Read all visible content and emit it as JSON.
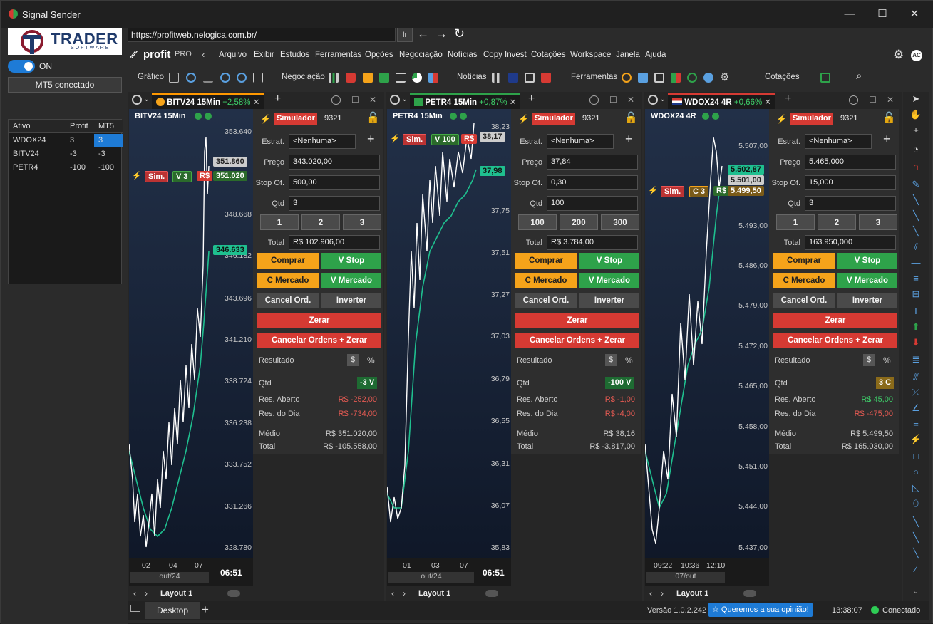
{
  "window": {
    "title": "Signal Sender",
    "min": "—",
    "max": "☐",
    "close": "✕"
  },
  "left": {
    "logo_main": "TRADER",
    "logo_sub": "SOFTWARE",
    "toggle_label": "ON",
    "mt5_status": "MT5 conectado",
    "table": {
      "headers": [
        "Ativo",
        "Profit",
        "MT5"
      ],
      "rows": [
        [
          "WDOX24",
          "3",
          "3"
        ],
        [
          "BITV24",
          "-3",
          "-3"
        ],
        [
          "PETR4",
          "-100",
          "-100"
        ]
      ]
    }
  },
  "browser": {
    "url": "https://profitweb.nelogica.com.br/",
    "go": "Ir",
    "back": "←",
    "forward": "→",
    "reload": "↻"
  },
  "app": {
    "brand": "profit",
    "brand_suffix": "PRO",
    "menu": [
      "Arquivo",
      "Exibir",
      "Estudos",
      "Ferramentas",
      "Opções",
      "Negociação",
      "Notícias",
      "Copy Invest",
      "Cotações",
      "Workspace",
      "Janela",
      "Ajuda"
    ],
    "user_badge": "AC",
    "toolbar_labels": {
      "grafico": "Gráfico",
      "negociacao": "Negociação",
      "noticias": "Notícias",
      "ferramentas": "Ferramentas",
      "cotacoes": "Cotações"
    }
  },
  "colors": {
    "accent": "#1e7bd6",
    "buy": "#f5a31a",
    "sell": "#2ea24a",
    "danger": "#d63a33",
    "ma": "#1fbf8f"
  },
  "panels": [
    {
      "tab": "BITV24 15Min",
      "tab_change": "+2,58%",
      "chart_title": "BITV24 15Min",
      "y_labels": [
        "353.640",
        "351.860",
        "351.020",
        "348.668",
        "346.633",
        "346.182",
        "343.696",
        "341.210",
        "338.724",
        "336.238",
        "333.752",
        "331.266",
        "328.780"
      ],
      "x_labels": [
        "02",
        "04",
        "07"
      ],
      "x_month": "out/24",
      "time": "06:51",
      "markers": {
        "sim": "Sim.",
        "pos": "V 3",
        "cur": "R$",
        "price": "351.020",
        "last": "351.860",
        "ma": "346.633"
      },
      "layout": "Layout 1",
      "order": {
        "account": "Simulador",
        "account_num": "9321",
        "estrat_label": "Estrat.",
        "estrat": "<Nenhuma>",
        "preco_label": "Preço",
        "preco": "343.020,00",
        "stop_label": "Stop Of.",
        "stop": "500,00",
        "qtd_label": "Qtd",
        "qtd": "3",
        "q1": "1",
        "q2": "2",
        "q3": "3",
        "total_label": "Total",
        "total": "R$ 102.906,00",
        "comprar": "Comprar",
        "vstop": "V Stop",
        "cmercado": "C Mercado",
        "vmercado": "V Mercado",
        "cancel": "Cancel Ord.",
        "inverter": "Inverter",
        "zerar": "Zerar",
        "cancelar_zerar": "Cancelar Ordens + Zerar",
        "resultado": "Resultado",
        "dollar": "$",
        "pct": "%",
        "pos_qtd_label": "Qtd",
        "pos_qtd": "-3 V",
        "res_aberto_label": "Res. Aberto",
        "res_aberto": "R$ -252,00",
        "res_dia_label": "Res. do Dia",
        "res_dia": "R$ -734,00",
        "medio_label": "Médio",
        "medio": "R$ 351.020,00",
        "total2_label": "Total",
        "total2": "R$ -105.558,00"
      }
    },
    {
      "tab": "PETR4 15Min",
      "tab_change": "+0,87%",
      "chart_title": "PETR4 15Min",
      "y_labels": [
        "38,23",
        "38,17",
        "37,98",
        "37,75",
        "37,51",
        "37,27",
        "37,03",
        "36,79",
        "36,55",
        "36,31",
        "36,07",
        "35,83"
      ],
      "x_labels": [
        "01",
        "03",
        "07"
      ],
      "x_month": "out/24",
      "time": "06:51",
      "markers": {
        "sim": "Sim.",
        "pos": "V 100",
        "cur": "R$",
        "price": "38,17",
        "ma": "37,98"
      },
      "layout": "Layout 1",
      "order": {
        "account": "Simulador",
        "account_num": "9321",
        "estrat_label": "Estrat.",
        "estrat": "<Nenhuma>",
        "preco_label": "Preço",
        "preco": "37,84",
        "stop_label": "Stop Of.",
        "stop": "0,30",
        "qtd_label": "Qtd",
        "qtd": "100",
        "q1": "100",
        "q2": "200",
        "q3": "300",
        "total_label": "Total",
        "total": "R$ 3.784,00",
        "comprar": "Comprar",
        "vstop": "V Stop",
        "cmercado": "C Mercado",
        "vmercado": "V Mercado",
        "cancel": "Cancel Ord.",
        "inverter": "Inverter",
        "zerar": "Zerar",
        "cancelar_zerar": "Cancelar Ordens + Zerar",
        "resultado": "Resultado",
        "dollar": "$",
        "pct": "%",
        "pos_qtd_label": "Qtd",
        "pos_qtd": "-100 V",
        "res_aberto_label": "Res. Aberto",
        "res_aberto": "R$ -1,00",
        "res_dia_label": "Res. do Dia",
        "res_dia": "R$ -4,00",
        "medio_label": "Médio",
        "medio": "R$ 38,16",
        "total2_label": "Total",
        "total2": "R$ -3.817,00"
      }
    },
    {
      "tab": "WDOX24 4R",
      "tab_change": "+0,66%",
      "chart_title": "WDOX24 4R",
      "y_labels": [
        "5.507,00",
        "5.502,87",
        "5.501,00",
        "5.499,50",
        "5.493,00",
        "5.486,00",
        "5.479,00",
        "5.472,00",
        "5.465,00",
        "5.458,00",
        "5.451,00",
        "5.444,00",
        "5.437,00"
      ],
      "x_labels": [
        "09:22",
        "10:36",
        "12:10"
      ],
      "x_month": "07/out",
      "time": "",
      "markers": {
        "sim": "Sim.",
        "pos": "C 3",
        "cur": "R$",
        "price": "5.499,50",
        "last": "5.501,00",
        "ma": "5.502,87"
      },
      "layout": "Layout 1",
      "order": {
        "account": "Simulador",
        "account_num": "9321",
        "estrat_label": "Estrat.",
        "estrat": "<Nenhuma>",
        "preco_label": "Preço",
        "preco": "5.465,000",
        "stop_label": "Stop Of.",
        "stop": "15,000",
        "qtd_label": "Qtd",
        "qtd": "3",
        "q1": "1",
        "q2": "2",
        "q3": "3",
        "total_label": "Total",
        "total": "163.950,000",
        "comprar": "Comprar",
        "vstop": "V Stop",
        "cmercado": "C Mercado",
        "vmercado": "V Mercado",
        "cancel": "Cancel Ord.",
        "inverter": "Inverter",
        "zerar": "Zerar",
        "cancelar_zerar": "Cancelar Ordens + Zerar",
        "resultado": "Resultado",
        "dollar": "$",
        "pct": "%",
        "pos_qtd_label": "Qtd",
        "pos_qtd": "3 C",
        "res_aberto_label": "Res. Aberto",
        "res_aberto": "R$ 45,00",
        "res_dia_label": "Res. do Dia",
        "res_dia": "R$ -475,00",
        "medio_label": "Médio",
        "medio": "R$ 5.499,50",
        "total2_label": "Total",
        "total2": "R$ 165.030,00"
      }
    }
  ],
  "status": {
    "desktop_tab": "Desktop",
    "plus": "+",
    "version": "Versão 1.0.2.242",
    "feedback": "☆ Queremos a sua opinião!",
    "clock": "13:38:07",
    "conn": "Conectado"
  }
}
